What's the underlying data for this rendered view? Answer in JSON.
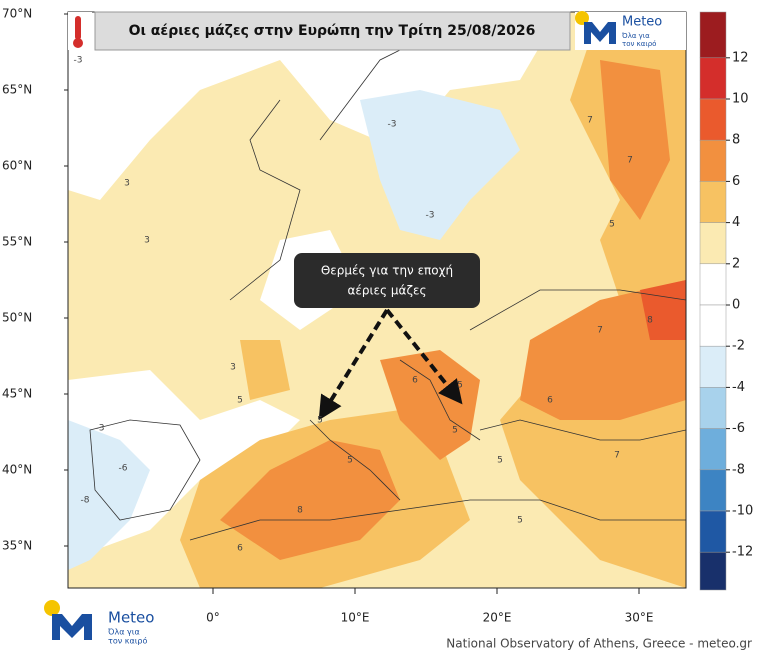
{
  "map": {
    "title": "Οι αέριες μάζες στην Ευρώπη την Τρίτη 25/08/2026",
    "annotation": [
      "Θερμές για την εποχή",
      "αέριες μάζες"
    ],
    "lat_ticks": [
      {
        "value": 70,
        "label": "70°N"
      },
      {
        "value": 65,
        "label": "65°N"
      },
      {
        "value": 60,
        "label": "60°N"
      },
      {
        "value": 55,
        "label": "55°N"
      },
      {
        "value": 50,
        "label": "50°N"
      },
      {
        "value": 45,
        "label": "45°N"
      },
      {
        "value": 40,
        "label": "40°N"
      },
      {
        "value": 35,
        "label": "35°N"
      }
    ],
    "lon_ticks": [
      {
        "value": 0,
        "label": "0°"
      },
      {
        "value": 10,
        "label": "10°E"
      },
      {
        "value": 20,
        "label": "20°E"
      },
      {
        "value": 30,
        "label": "30°E"
      }
    ],
    "colorbar": {
      "ticks": [
        12,
        10,
        8,
        6,
        4,
        2,
        0,
        -2,
        -4,
        -6,
        -8,
        -10,
        -12
      ],
      "colors": [
        "#9c1c1f",
        "#d42e2b",
        "#ea5a2d",
        "#f2903f",
        "#f7c262",
        "#fbeab2",
        "#ffffff",
        "#ffffff",
        "#dbedf8",
        "#a8d2ec",
        "#6eaedc",
        "#3d84c3",
        "#1f58a4",
        "#18306b"
      ]
    },
    "map_labels": [
      3,
      3,
      3,
      5,
      -3,
      -3,
      -6,
      -8,
      5,
      5,
      8,
      6,
      6,
      5,
      5,
      6,
      7,
      8,
      7,
      7,
      5,
      -3,
      -3,
      5,
      5,
      7
    ],
    "logo": {
      "name": "Meteo",
      "tagline": [
        "Όλα για",
        "τον καιρό"
      ]
    },
    "credit": "National Observatory of Athens, Greece - meteo.gr"
  }
}
